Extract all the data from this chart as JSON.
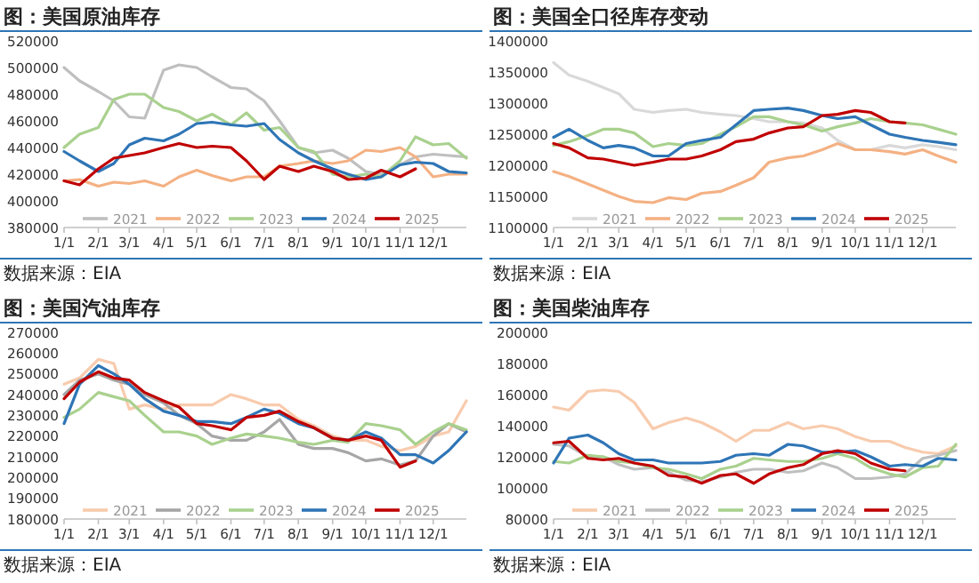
{
  "chart_data": [
    {
      "type": "line",
      "title": "图：美国原油库存",
      "annotations": [
        "数据来源：EIA"
      ],
      "legend": "bottom",
      "xlim": [
        "--01-01",
        "--12-31"
      ],
      "xticks": [
        {
          "value": "--01-01",
          "label": "1/1"
        },
        {
          "value": "--02-01",
          "label": "2/1"
        },
        {
          "value": "--03-01",
          "label": "3/1"
        },
        {
          "value": "--04-01",
          "label": "4/1"
        },
        {
          "value": "--05-01",
          "label": "5/1"
        },
        {
          "value": "--06-01",
          "label": "6/1"
        },
        {
          "value": "--07-01",
          "label": "7/1"
        },
        {
          "value": "--08-01",
          "label": "8/1"
        },
        {
          "value": "--09-01",
          "label": "9/1"
        },
        {
          "value": "--10-01",
          "label": "10/1"
        },
        {
          "value": "--11-01",
          "label": "11/1"
        },
        {
          "value": "--12-01",
          "label": "12/1"
        }
      ],
      "ylim": [
        380000,
        520000
      ],
      "yticks": [
        380000,
        400000,
        420000,
        440000,
        460000,
        480000,
        500000,
        520000
      ],
      "x": [
        "--01-01",
        "--01-15",
        "--02-01",
        "--02-15",
        "--03-01",
        "--03-15",
        "--04-01",
        "--04-15",
        "--05-01",
        "--05-15",
        "--06-01",
        "--06-15",
        "--07-01",
        "--07-15",
        "--08-01",
        "--08-15",
        "--09-01",
        "--09-15",
        "--10-01",
        "--10-15",
        "--11-01",
        "--11-15",
        "--12-01",
        "--12-15",
        "--12-31"
      ],
      "series": [
        {
          "name": "2021",
          "color": "#bfbfbf",
          "values": [
            500000,
            490000,
            482000,
            475000,
            463000,
            462000,
            498000,
            502000,
            500000,
            493000,
            485000,
            484000,
            475000,
            460000,
            440000,
            436000,
            438000,
            432000,
            422000,
            420000,
            427000,
            433000,
            435000,
            434000,
            433000
          ]
        },
        {
          "name": "2022",
          "color": "#f4b183",
          "values": [
            415000,
            416000,
            411000,
            414000,
            413000,
            415000,
            411000,
            418000,
            423000,
            419000,
            415000,
            418000,
            418000,
            426000,
            428000,
            430000,
            428000,
            430000,
            438000,
            437000,
            440000,
            433000,
            418000,
            420000,
            420000
          ]
        },
        {
          "name": "2023",
          "color": "#a9d18e",
          "values": [
            440000,
            450000,
            455000,
            476000,
            480000,
            480000,
            470000,
            467000,
            460000,
            465000,
            457000,
            466000,
            453000,
            455000,
            440000,
            437000,
            420000,
            418000,
            420000,
            418000,
            430000,
            448000,
            442000,
            443000,
            432000
          ]
        },
        {
          "name": "2024",
          "color": "#2e75b6",
          "values": [
            437000,
            430000,
            422000,
            428000,
            442000,
            447000,
            445000,
            450000,
            458000,
            459000,
            457000,
            456000,
            458000,
            446000,
            436000,
            430000,
            424000,
            420000,
            416000,
            418000,
            427000,
            429000,
            428000,
            422000,
            421000
          ]
        },
        {
          "name": "2025",
          "color": "#c00000",
          "values": [
            415000,
            412000,
            424000,
            432000,
            434000,
            436000,
            440000,
            443000,
            440000,
            441000,
            440000,
            430000,
            416000,
            426000,
            422000,
            426000,
            422000,
            416000,
            417000,
            423000,
            418000,
            424000,
            null,
            null,
            null
          ]
        }
      ]
    },
    {
      "type": "line",
      "title": "图：美国全口径库存变动",
      "annotations": [
        "数据来源：EIA"
      ],
      "legend": "bottom",
      "xlim": [
        "--01-01",
        "--12-31"
      ],
      "xticks": [
        {
          "value": "--01-01",
          "label": "1/1"
        },
        {
          "value": "--02-01",
          "label": "2/1"
        },
        {
          "value": "--03-01",
          "label": "3/1"
        },
        {
          "value": "--04-01",
          "label": "4/1"
        },
        {
          "value": "--05-01",
          "label": "5/1"
        },
        {
          "value": "--06-01",
          "label": "6/1"
        },
        {
          "value": "--07-01",
          "label": "7/1"
        },
        {
          "value": "--08-01",
          "label": "8/1"
        },
        {
          "value": "--09-01",
          "label": "9/1"
        },
        {
          "value": "--10-01",
          "label": "10/1"
        },
        {
          "value": "--11-01",
          "label": "11/1"
        },
        {
          "value": "--12-01",
          "label": "12/1"
        }
      ],
      "ylim": [
        1100000,
        1400000
      ],
      "yticks": [
        1100000,
        1150000,
        1200000,
        1250000,
        1300000,
        1350000,
        1400000
      ],
      "x": [
        "--01-01",
        "--01-15",
        "--02-01",
        "--02-15",
        "--03-01",
        "--03-15",
        "--04-01",
        "--04-15",
        "--05-01",
        "--05-15",
        "--06-01",
        "--06-15",
        "--07-01",
        "--07-15",
        "--08-01",
        "--08-15",
        "--09-01",
        "--09-15",
        "--10-01",
        "--10-15",
        "--11-01",
        "--11-15",
        "--12-01",
        "--12-15",
        "--12-31"
      ],
      "series": [
        {
          "name": "2021",
          "color": "#d9d9d9",
          "values": [
            1365000,
            1345000,
            1335000,
            1325000,
            1315000,
            1290000,
            1285000,
            1288000,
            1290000,
            1285000,
            1282000,
            1280000,
            1275000,
            1270000,
            1270000,
            1268000,
            1260000,
            1240000,
            1225000,
            1225000,
            1232000,
            1228000,
            1233000,
            1230000,
            1225000
          ]
        },
        {
          "name": "2022",
          "color": "#f4b183",
          "values": [
            1190000,
            1182000,
            1170000,
            1160000,
            1150000,
            1142000,
            1140000,
            1148000,
            1145000,
            1155000,
            1158000,
            1168000,
            1180000,
            1205000,
            1212000,
            1215000,
            1225000,
            1235000,
            1225000,
            1225000,
            1222000,
            1218000,
            1225000,
            1215000,
            1205000
          ]
        },
        {
          "name": "2023",
          "color": "#a9d18e",
          "values": [
            1232000,
            1238000,
            1248000,
            1258000,
            1258000,
            1252000,
            1230000,
            1235000,
            1232000,
            1235000,
            1250000,
            1262000,
            1278000,
            1278000,
            1270000,
            1265000,
            1255000,
            1262000,
            1268000,
            1275000,
            1270000,
            1268000,
            1265000,
            1258000,
            1250000
          ]
        },
        {
          "name": "2024",
          "color": "#2e75b6",
          "values": [
            1245000,
            1258000,
            1240000,
            1228000,
            1232000,
            1228000,
            1215000,
            1215000,
            1235000,
            1240000,
            1245000,
            1265000,
            1288000,
            1290000,
            1292000,
            1288000,
            1280000,
            1275000,
            1278000,
            1265000,
            1250000,
            1245000,
            1240000,
            1237000,
            1233000
          ]
        },
        {
          "name": "2025",
          "color": "#c00000",
          "values": [
            1235000,
            1228000,
            1212000,
            1210000,
            1205000,
            1200000,
            1205000,
            1210000,
            1210000,
            1215000,
            1225000,
            1238000,
            1242000,
            1252000,
            1260000,
            1262000,
            1280000,
            1282000,
            1288000,
            1285000,
            1270000,
            1268000,
            null,
            null,
            null
          ]
        }
      ]
    },
    {
      "type": "line",
      "title": "图：美国汽油库存",
      "annotations": [
        "数据来源：EIA"
      ],
      "legend": "bottom",
      "xlim": [
        "--01-01",
        "--12-31"
      ],
      "xticks": [
        {
          "value": "--01-01",
          "label": "1/1"
        },
        {
          "value": "--02-01",
          "label": "2/1"
        },
        {
          "value": "--03-01",
          "label": "3/1"
        },
        {
          "value": "--04-01",
          "label": "4/1"
        },
        {
          "value": "--05-01",
          "label": "5/1"
        },
        {
          "value": "--06-01",
          "label": "6/1"
        },
        {
          "value": "--07-01",
          "label": "7/1"
        },
        {
          "value": "--08-01",
          "label": "8/1"
        },
        {
          "value": "--09-01",
          "label": "9/1"
        },
        {
          "value": "--10-01",
          "label": "10/1"
        },
        {
          "value": "--11-01",
          "label": "11/1"
        },
        {
          "value": "--12-01",
          "label": "12/1"
        }
      ],
      "ylim": [
        180000,
        270000
      ],
      "yticks": [
        180000,
        190000,
        200000,
        210000,
        220000,
        230000,
        240000,
        250000,
        260000,
        270000
      ],
      "x": [
        "--01-01",
        "--01-15",
        "--02-01",
        "--02-15",
        "--03-01",
        "--03-15",
        "--04-01",
        "--04-15",
        "--05-01",
        "--05-15",
        "--06-01",
        "--06-15",
        "--07-01",
        "--07-15",
        "--08-01",
        "--08-15",
        "--09-01",
        "--09-15",
        "--10-01",
        "--10-15",
        "--11-01",
        "--11-15",
        "--12-01",
        "--12-15",
        "--12-31"
      ],
      "series": [
        {
          "name": "2021",
          "color": "#f8cbad",
          "values": [
            245000,
            248000,
            257000,
            255000,
            233000,
            235000,
            233000,
            235000,
            235000,
            235000,
            240000,
            238000,
            235000,
            235000,
            228000,
            225000,
            220000,
            218000,
            218000,
            215000,
            213000,
            215000,
            220000,
            222000,
            237000
          ]
        },
        {
          "name": "2022",
          "color": "#a6a6a6",
          "values": [
            240000,
            247000,
            250000,
            247000,
            245000,
            240000,
            236000,
            230000,
            226000,
            220000,
            218000,
            218000,
            222000,
            228000,
            216000,
            214000,
            214000,
            212000,
            208000,
            209000,
            206000,
            208000,
            220000,
            226000,
            222000
          ]
        },
        {
          "name": "2023",
          "color": "#a9d18e",
          "values": [
            229000,
            233000,
            241000,
            239000,
            237000,
            230000,
            222000,
            222000,
            220000,
            216000,
            219000,
            221000,
            220000,
            219000,
            217000,
            216000,
            218000,
            217000,
            226000,
            225000,
            223000,
            216000,
            222000,
            226000,
            223000
          ]
        },
        {
          "name": "2024",
          "color": "#2e75b6",
          "values": [
            226000,
            245000,
            254000,
            250000,
            245000,
            238000,
            232000,
            230000,
            227000,
            227000,
            226000,
            229000,
            233000,
            231000,
            226000,
            224000,
            219000,
            218000,
            222000,
            219000,
            211000,
            211000,
            207000,
            213000,
            222000
          ]
        },
        {
          "name": "2025",
          "color": "#c00000",
          "values": [
            238000,
            246000,
            251000,
            248000,
            247000,
            241000,
            237000,
            234000,
            226000,
            225000,
            223000,
            229000,
            230000,
            232000,
            227000,
            224000,
            219000,
            218000,
            220000,
            218000,
            205000,
            208000,
            null,
            null,
            null
          ]
        }
      ]
    },
    {
      "type": "line",
      "title": "图：美国柴油库存",
      "annotations": [
        "数据来源：EIA"
      ],
      "legend": "bottom",
      "xlim": [
        "--01-01",
        "--12-31"
      ],
      "xticks": [
        {
          "value": "--01-01",
          "label": "1/1"
        },
        {
          "value": "--02-01",
          "label": "2/1"
        },
        {
          "value": "--03-01",
          "label": "3/1"
        },
        {
          "value": "--04-01",
          "label": "4/1"
        },
        {
          "value": "--05-01",
          "label": "5/1"
        },
        {
          "value": "--06-01",
          "label": "6/1"
        },
        {
          "value": "--07-01",
          "label": "7/1"
        },
        {
          "value": "--08-01",
          "label": "8/1"
        },
        {
          "value": "--09-01",
          "label": "9/1"
        },
        {
          "value": "--10-01",
          "label": "10/1"
        },
        {
          "value": "--11-01",
          "label": "11/1"
        },
        {
          "value": "--12-01",
          "label": "12/1"
        }
      ],
      "ylim": [
        80000,
        200000
      ],
      "yticks": [
        80000,
        100000,
        120000,
        140000,
        160000,
        180000,
        200000
      ],
      "x": [
        "--01-01",
        "--01-15",
        "--02-01",
        "--02-15",
        "--03-01",
        "--03-15",
        "--04-01",
        "--04-15",
        "--05-01",
        "--05-15",
        "--06-01",
        "--06-15",
        "--07-01",
        "--07-15",
        "--08-01",
        "--08-15",
        "--09-01",
        "--09-15",
        "--10-01",
        "--10-15",
        "--11-01",
        "--11-15",
        "--12-01",
        "--12-15",
        "--12-31"
      ],
      "series": [
        {
          "name": "2021",
          "color": "#f8cbad",
          "values": [
            152000,
            150000,
            162000,
            163000,
            162000,
            155000,
            138000,
            142000,
            145000,
            142000,
            136000,
            130000,
            137000,
            137000,
            142000,
            138000,
            140000,
            138000,
            133000,
            130000,
            130000,
            126000,
            123000,
            122000,
            127000
          ]
        },
        {
          "name": "2022",
          "color": "#bfbfbf",
          "values": [
            128000,
            127000,
            120000,
            120000,
            115000,
            112000,
            113000,
            110000,
            105000,
            104000,
            107000,
            110000,
            112000,
            112000,
            110000,
            111000,
            116000,
            113000,
            106000,
            106000,
            107000,
            109000,
            119000,
            121000,
            124000
          ]
        },
        {
          "name": "2023",
          "color": "#a9d18e",
          "values": [
            117000,
            116000,
            121000,
            120000,
            117000,
            116000,
            113000,
            112000,
            109000,
            106000,
            112000,
            114000,
            119000,
            118000,
            117000,
            117000,
            119000,
            122000,
            119000,
            113000,
            109000,
            107000,
            113000,
            114000,
            128000
          ]
        },
        {
          "name": "2024",
          "color": "#2e75b6",
          "values": [
            116000,
            132000,
            134000,
            129000,
            122000,
            118000,
            118000,
            116000,
            116000,
            116000,
            117000,
            121000,
            122000,
            121000,
            128000,
            127000,
            123000,
            123000,
            124000,
            120000,
            114000,
            115000,
            114000,
            119000,
            118000
          ]
        },
        {
          "name": "2025",
          "color": "#c00000",
          "values": [
            129000,
            130000,
            119000,
            118000,
            119000,
            116000,
            114000,
            108000,
            107000,
            103000,
            108000,
            109000,
            103000,
            109000,
            113000,
            115000,
            122000,
            124000,
            122000,
            116000,
            112000,
            111000,
            null,
            null,
            null
          ]
        }
      ]
    }
  ]
}
